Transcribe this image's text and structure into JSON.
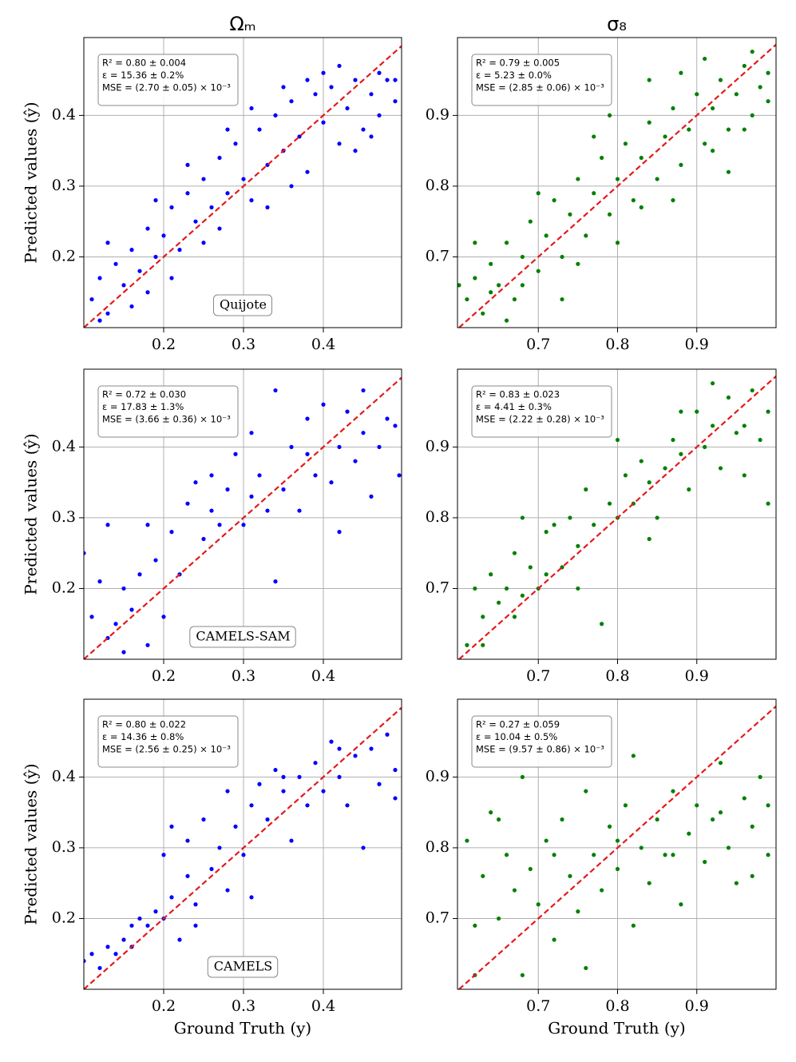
{
  "chart_data": [
    {
      "type": "scatter",
      "title": "Ωₘ",
      "ylabel": "Predicted values (ŷ)",
      "color": "#0000ff",
      "annotations": [
        "R² = 0.80 ± 0.004",
        "ε = 15.36 ± 0.2%",
        "MSE = (2.70 ± 0.05) × 10⁻³"
      ],
      "dataset": "Quijote",
      "xlim": [
        0.1,
        0.498
      ],
      "ylim": [
        0.1,
        0.51
      ],
      "xticks": [
        0.2,
        0.3,
        0.4
      ],
      "yticks": [
        0.2,
        0.3,
        0.4
      ],
      "grid": true,
      "x": [
        0.11,
        0.12,
        0.13,
        0.14,
        0.15,
        0.16,
        0.17,
        0.18,
        0.19,
        0.2,
        0.21,
        0.22,
        0.23,
        0.24,
        0.25,
        0.26,
        0.27,
        0.28,
        0.29,
        0.3,
        0.31,
        0.32,
        0.33,
        0.34,
        0.35,
        0.36,
        0.37,
        0.38,
        0.39,
        0.4,
        0.41,
        0.42,
        0.43,
        0.44,
        0.45,
        0.46,
        0.47,
        0.48,
        0.49,
        0.13,
        0.16,
        0.21,
        0.25,
        0.28,
        0.31,
        0.36,
        0.4,
        0.44,
        0.47,
        0.33,
        0.12,
        0.19,
        0.23,
        0.38,
        0.42,
        0.46,
        0.49,
        0.27,
        0.35,
        0.18
      ],
      "y": [
        0.14,
        0.17,
        0.12,
        0.19,
        0.16,
        0.21,
        0.18,
        0.24,
        0.2,
        0.23,
        0.27,
        0.21,
        0.29,
        0.25,
        0.31,
        0.27,
        0.34,
        0.29,
        0.36,
        0.31,
        0.28,
        0.38,
        0.33,
        0.4,
        0.35,
        0.42,
        0.37,
        0.32,
        0.43,
        0.39,
        0.44,
        0.36,
        0.41,
        0.45,
        0.38,
        0.43,
        0.4,
        0.45,
        0.42,
        0.22,
        0.13,
        0.17,
        0.22,
        0.38,
        0.41,
        0.3,
        0.46,
        0.35,
        0.46,
        0.27,
        0.11,
        0.28,
        0.33,
        0.45,
        0.47,
        0.37,
        0.45,
        0.24,
        0.44,
        0.15
      ]
    },
    {
      "type": "scatter",
      "title": "σ₈",
      "color": "#008000",
      "annotations": [
        "R² = 0.79 ± 0.005",
        "ε = 5.23 ± 0.0%",
        "MSE = (2.85 ± 0.06) × 10⁻³"
      ],
      "xlim": [
        0.598,
        1.0
      ],
      "ylim": [
        0.6,
        1.01
      ],
      "xticks": [
        0.7,
        0.8,
        0.9
      ],
      "yticks": [
        0.7,
        0.8,
        0.9
      ],
      "grid": true,
      "x": [
        0.61,
        0.62,
        0.63,
        0.64,
        0.65,
        0.66,
        0.67,
        0.68,
        0.69,
        0.7,
        0.71,
        0.72,
        0.73,
        0.74,
        0.75,
        0.76,
        0.77,
        0.78,
        0.79,
        0.8,
        0.81,
        0.82,
        0.83,
        0.84,
        0.85,
        0.86,
        0.87,
        0.88,
        0.89,
        0.9,
        0.91,
        0.92,
        0.93,
        0.94,
        0.95,
        0.96,
        0.97,
        0.98,
        0.99,
        0.62,
        0.66,
        0.7,
        0.73,
        0.77,
        0.8,
        0.84,
        0.87,
        0.91,
        0.94,
        0.97,
        0.64,
        0.68,
        0.75,
        0.79,
        0.83,
        0.88,
        0.92,
        0.96,
        0.99,
        0.6
      ],
      "y": [
        0.64,
        0.67,
        0.62,
        0.69,
        0.66,
        0.72,
        0.64,
        0.7,
        0.75,
        0.68,
        0.73,
        0.78,
        0.7,
        0.76,
        0.81,
        0.73,
        0.79,
        0.84,
        0.76,
        0.81,
        0.86,
        0.78,
        0.84,
        0.89,
        0.81,
        0.87,
        0.91,
        0.83,
        0.88,
        0.93,
        0.86,
        0.91,
        0.95,
        0.88,
        0.93,
        0.97,
        0.9,
        0.94,
        0.92,
        0.72,
        0.61,
        0.79,
        0.64,
        0.87,
        0.72,
        0.95,
        0.78,
        0.98,
        0.82,
        0.99,
        0.65,
        0.66,
        0.69,
        0.9,
        0.77,
        0.96,
        0.85,
        0.88,
        0.96,
        0.66
      ]
    },
    {
      "type": "scatter",
      "ylabel": "Predicted values (ŷ)",
      "color": "#0000ff",
      "annotations": [
        "R² = 0.72 ± 0.030",
        "ε = 17.83 ± 1.3%",
        "MSE = (3.66 ± 0.36) × 10⁻³"
      ],
      "dataset": "CAMELS-SAM",
      "xlim": [
        0.1,
        0.498
      ],
      "ylim": [
        0.1,
        0.51
      ],
      "xticks": [
        0.2,
        0.3,
        0.4
      ],
      "yticks": [
        0.2,
        0.3,
        0.4
      ],
      "grid": true,
      "x": [
        0.1,
        0.11,
        0.12,
        0.13,
        0.13,
        0.14,
        0.15,
        0.16,
        0.17,
        0.18,
        0.18,
        0.19,
        0.2,
        0.21,
        0.22,
        0.23,
        0.24,
        0.25,
        0.26,
        0.27,
        0.28,
        0.29,
        0.3,
        0.31,
        0.31,
        0.32,
        0.33,
        0.34,
        0.34,
        0.35,
        0.36,
        0.37,
        0.38,
        0.39,
        0.4,
        0.41,
        0.42,
        0.42,
        0.43,
        0.44,
        0.45,
        0.46,
        0.47,
        0.48,
        0.49,
        0.495,
        0.26,
        0.38,
        0.45,
        0.15
      ],
      "y": [
        0.25,
        0.16,
        0.21,
        0.13,
        0.29,
        0.15,
        0.2,
        0.17,
        0.22,
        0.12,
        0.29,
        0.24,
        0.16,
        0.28,
        0.22,
        0.32,
        0.35,
        0.27,
        0.31,
        0.29,
        0.34,
        0.39,
        0.29,
        0.42,
        0.33,
        0.36,
        0.31,
        0.21,
        0.48,
        0.34,
        0.4,
        0.31,
        0.44,
        0.36,
        0.46,
        0.35,
        0.28,
        0.4,
        0.45,
        0.38,
        0.42,
        0.33,
        0.4,
        0.44,
        0.43,
        0.36,
        0.36,
        0.39,
        0.48,
        0.11
      ]
    },
    {
      "type": "scatter",
      "color": "#008000",
      "annotations": [
        "R² = 0.83 ± 0.023",
        "ε = 4.41 ± 0.3%",
        "MSE = (2.22 ± 0.28) × 10⁻³"
      ],
      "xlim": [
        0.598,
        1.0
      ],
      "ylim": [
        0.6,
        1.01
      ],
      "xticks": [
        0.7,
        0.8,
        0.9
      ],
      "yticks": [
        0.7,
        0.8,
        0.9
      ],
      "grid": true,
      "x": [
        0.61,
        0.62,
        0.63,
        0.64,
        0.65,
        0.66,
        0.67,
        0.68,
        0.69,
        0.7,
        0.71,
        0.72,
        0.73,
        0.74,
        0.75,
        0.76,
        0.77,
        0.78,
        0.79,
        0.8,
        0.81,
        0.82,
        0.83,
        0.84,
        0.85,
        0.86,
        0.87,
        0.88,
        0.89,
        0.9,
        0.91,
        0.92,
        0.93,
        0.94,
        0.95,
        0.96,
        0.97,
        0.98,
        0.99,
        0.99,
        0.67,
        0.71,
        0.75,
        0.8,
        0.84,
        0.88,
        0.92,
        0.68,
        0.63,
        0.96
      ],
      "y": [
        0.62,
        0.7,
        0.66,
        0.72,
        0.68,
        0.7,
        0.75,
        0.69,
        0.73,
        0.7,
        0.72,
        0.79,
        0.73,
        0.8,
        0.76,
        0.84,
        0.79,
        0.65,
        0.82,
        0.8,
        0.86,
        0.82,
        0.88,
        0.85,
        0.8,
        0.87,
        0.91,
        0.89,
        0.84,
        0.95,
        0.9,
        0.93,
        0.87,
        0.97,
        0.92,
        0.86,
        0.98,
        0.91,
        0.82,
        0.95,
        0.66,
        0.78,
        0.7,
        0.91,
        0.77,
        0.95,
        0.99,
        0.8,
        0.62,
        0.93
      ]
    },
    {
      "type": "scatter",
      "ylabel": "Predicted values (ŷ)",
      "xlabel": "Ground Truth (y)",
      "color": "#0000ff",
      "annotations": [
        "R² = 0.80 ± 0.022",
        "ε = 14.36 ± 0.8%",
        "MSE = (2.56 ± 0.25) × 10⁻³"
      ],
      "dataset": "CAMELS",
      "xlim": [
        0.1,
        0.498
      ],
      "ylim": [
        0.1,
        0.51
      ],
      "xticks": [
        0.2,
        0.3,
        0.4
      ],
      "yticks": [
        0.2,
        0.3,
        0.4
      ],
      "grid": true,
      "x": [
        0.1,
        0.11,
        0.12,
        0.13,
        0.14,
        0.15,
        0.16,
        0.17,
        0.18,
        0.19,
        0.2,
        0.2,
        0.21,
        0.22,
        0.23,
        0.23,
        0.24,
        0.25,
        0.26,
        0.27,
        0.28,
        0.28,
        0.29,
        0.3,
        0.31,
        0.32,
        0.33,
        0.34,
        0.35,
        0.36,
        0.37,
        0.38,
        0.39,
        0.4,
        0.41,
        0.42,
        0.43,
        0.44,
        0.45,
        0.46,
        0.47,
        0.48,
        0.49,
        0.49,
        0.24,
        0.31,
        0.35,
        0.42,
        0.16,
        0.21
      ],
      "y": [
        0.14,
        0.15,
        0.13,
        0.16,
        0.15,
        0.17,
        0.16,
        0.2,
        0.19,
        0.21,
        0.29,
        0.2,
        0.23,
        0.17,
        0.26,
        0.31,
        0.22,
        0.34,
        0.27,
        0.3,
        0.24,
        0.38,
        0.33,
        0.29,
        0.36,
        0.39,
        0.34,
        0.41,
        0.38,
        0.31,
        0.4,
        0.36,
        0.42,
        0.38,
        0.45,
        0.4,
        0.36,
        0.43,
        0.3,
        0.44,
        0.39,
        0.46,
        0.41,
        0.37,
        0.19,
        0.23,
        0.4,
        0.44,
        0.19,
        0.33
      ]
    },
    {
      "type": "scatter",
      "xlabel": "Ground Truth (y)",
      "color": "#008000",
      "annotations": [
        "R² = 0.27 ± 0.059",
        "ε = 10.04 ± 0.5%",
        "MSE = (9.57 ± 0.86) × 10⁻³"
      ],
      "xlim": [
        0.598,
        1.0
      ],
      "ylim": [
        0.6,
        1.01
      ],
      "xticks": [
        0.7,
        0.8,
        0.9
      ],
      "yticks": [
        0.7,
        0.8,
        0.9
      ],
      "grid": true,
      "x": [
        0.61,
        0.62,
        0.63,
        0.64,
        0.65,
        0.66,
        0.67,
        0.68,
        0.68,
        0.69,
        0.7,
        0.71,
        0.72,
        0.73,
        0.74,
        0.75,
        0.76,
        0.76,
        0.77,
        0.78,
        0.79,
        0.8,
        0.81,
        0.82,
        0.82,
        0.83,
        0.84,
        0.85,
        0.86,
        0.87,
        0.88,
        0.89,
        0.9,
        0.91,
        0.92,
        0.93,
        0.94,
        0.95,
        0.96,
        0.97,
        0.98,
        0.99,
        0.99,
        0.62,
        0.65,
        0.72,
        0.8,
        0.87,
        0.93,
        0.97
      ],
      "y": [
        0.81,
        0.69,
        0.76,
        0.85,
        0.7,
        0.79,
        0.74,
        0.62,
        0.9,
        0.77,
        0.72,
        0.81,
        0.67,
        0.84,
        0.76,
        0.71,
        0.63,
        0.88,
        0.79,
        0.74,
        0.83,
        0.77,
        0.86,
        0.69,
        0.93,
        0.8,
        0.75,
        0.84,
        0.79,
        0.88,
        0.72,
        0.82,
        0.86,
        0.78,
        0.84,
        0.92,
        0.8,
        0.75,
        0.87,
        0.83,
        0.9,
        0.79,
        0.86,
        0.62,
        0.84,
        0.79,
        0.81,
        0.79,
        0.85,
        0.76
      ]
    }
  ]
}
